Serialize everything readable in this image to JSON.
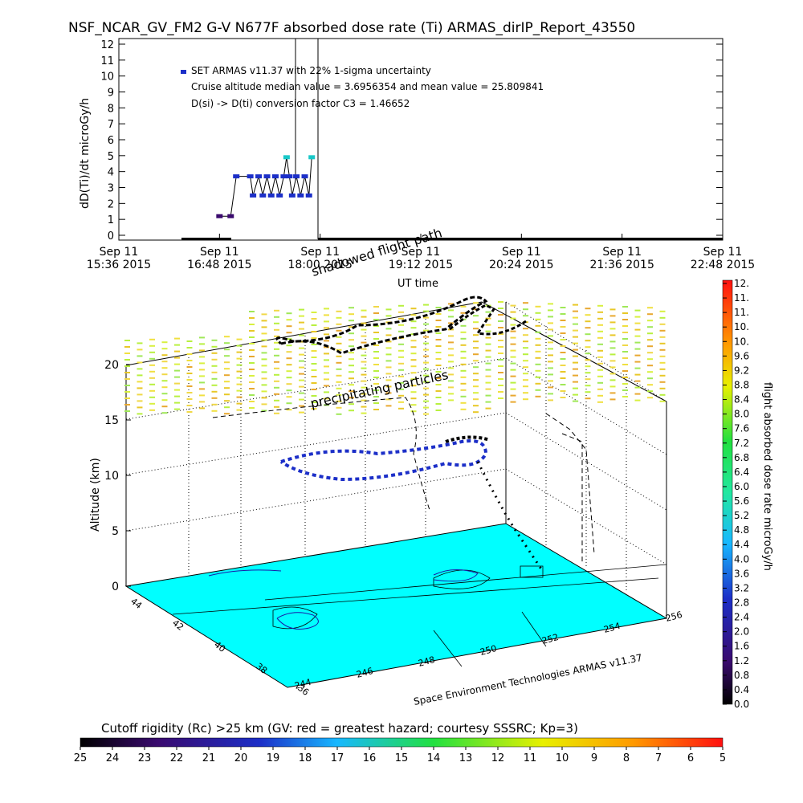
{
  "header": {
    "title": "NSF_NCAR_GV_FM2 G-V     N677F  absorbed dose rate (Ti) ARMAS_dirIP_Report_43550"
  },
  "timeseries": {
    "ylabel": "dD(Ti)/dt microGy/h",
    "xlabel": "UT time",
    "y_ticks": [
      "0",
      "1",
      "2",
      "3",
      "4",
      "5",
      "6",
      "7",
      "8",
      "9",
      "10",
      "11",
      "12"
    ],
    "x_ticks": [
      {
        "line1": "Sep 11",
        "line2": "15:36 2015"
      },
      {
        "line1": "Sep 11",
        "line2": "16:48 2015"
      },
      {
        "line1": "Sep 11",
        "line2": "18:00 2015"
      },
      {
        "line1": "Sep 11",
        "line2": "19:12 2015"
      },
      {
        "line1": "Sep 11",
        "line2": "20:24 2015"
      },
      {
        "line1": "Sep 11",
        "line2": "21:36 2015"
      },
      {
        "line1": "Sep 11",
        "line2": "22:48 2015"
      }
    ],
    "legend": [
      "SET ARMAS v11.37 with 22% 1-sigma uncertainty",
      "Cruise altitude median value = 3.6956354 and mean value = 25.809841",
      "D(si) -> D(ti) conversion factor C3 = 1.46652"
    ]
  },
  "map3d": {
    "zlabel": "Altitude (km)",
    "z_ticks": [
      "0",
      "5",
      "10",
      "15",
      "20"
    ],
    "lat_ticks": [
      "44",
      "42",
      "40",
      "38",
      "36"
    ],
    "lon_ticks": [
      "244",
      "246",
      "248",
      "250",
      "252",
      "254",
      "256"
    ],
    "annotation_particles": "precipitating particles",
    "annotation_shadow": "shadowed flight path",
    "credit": "Space Environment Technologies ARMAS v11.37"
  },
  "colorbar": {
    "label": "flight absorbed dose rate microGy/h",
    "ticks": [
      "0.0",
      "0.4",
      "0.8",
      "1.2",
      "1.6",
      "2.0",
      "2.4",
      "2.8",
      "3.2",
      "3.6",
      "4.0",
      "4.4",
      "4.8",
      "5.2",
      "5.6",
      "6.0",
      "6.4",
      "6.8",
      "7.2",
      "7.6",
      "8.0",
      "8.4",
      "8.8",
      "9.2",
      "9.6",
      "10.",
      "10.",
      "11.",
      "11.",
      "12."
    ]
  },
  "rigidity_bar": {
    "title": "Cutoff rigidity (Rc) >25 km (GV: red = greatest hazard; courtesy SSSRC; Kp=3)",
    "ticks": [
      "25",
      "24",
      "23",
      "22",
      "21",
      "20",
      "19",
      "18",
      "17",
      "16",
      "15",
      "14",
      "13",
      "12",
      "11",
      "10",
      "9",
      "8",
      "7",
      "6",
      "5"
    ]
  },
  "chart_data": {
    "type": "line",
    "title": "NSF_NCAR_GV_FM2 G-V     N677F  absorbed dose rate (Ti) ARMAS_dirIP_Report_43550",
    "xlabel": "UT time",
    "ylabel": "dD(Ti)/dt microGy/h",
    "xlim": [
      "15:36",
      "22:48"
    ],
    "ylim": [
      0,
      12
    ],
    "series": [
      {
        "name": "SET ARMAS v11.37 with 22% 1-sigma uncertainty",
        "points": [
          {
            "t": "16:48",
            "v": 1.2
          },
          {
            "t": "16:56",
            "v": 1.2
          },
          {
            "t": "17:00",
            "v": 3.7
          },
          {
            "t": "17:10",
            "v": 3.7
          },
          {
            "t": "17:12",
            "v": 2.5
          },
          {
            "t": "17:16",
            "v": 3.7
          },
          {
            "t": "17:19",
            "v": 2.5
          },
          {
            "t": "17:22",
            "v": 3.7
          },
          {
            "t": "17:25",
            "v": 2.5
          },
          {
            "t": "17:28",
            "v": 3.7
          },
          {
            "t": "17:31",
            "v": 2.5
          },
          {
            "t": "17:34",
            "v": 3.7
          },
          {
            "t": "17:36",
            "v": 4.9
          },
          {
            "t": "17:38",
            "v": 3.7
          },
          {
            "t": "17:40",
            "v": 2.5
          },
          {
            "t": "17:43",
            "v": 3.7
          },
          {
            "t": "17:46",
            "v": 2.5
          },
          {
            "t": "17:49",
            "v": 3.7
          },
          {
            "t": "17:52",
            "v": 2.5
          },
          {
            "t": "17:54",
            "v": 4.9
          }
        ]
      }
    ],
    "cruise_median": 3.6956354,
    "cruise_mean": 25.809841,
    "conversion_factor_C3": 1.46652,
    "colorbar_range": [
      0.0,
      12.0
    ],
    "rigidity_range_GV": [
      25,
      5
    ],
    "altitude_range_km": [
      0,
      20
    ],
    "legend_position": "top-left"
  }
}
